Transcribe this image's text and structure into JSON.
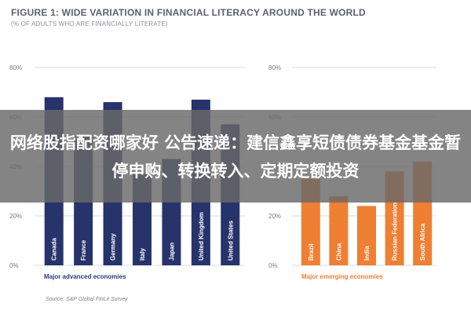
{
  "figure": {
    "title": "FIGURE 1: WIDE VARIATION IN FINANCIAL LITERACY AROUND THE WORLD",
    "subtitle": "(% OF ADULTS WHO ARE FINANCIALLY LITERATE)",
    "source": "Source: S&P Global FinLit Survey"
  },
  "overlay": {
    "text": "网络股指配资哪家好 公告速递：建信鑫享短债债券基金基金暂停申购、转换转入、定期定额投资"
  },
  "colors": {
    "advanced": "#27336b",
    "emerging": "#ef7f33",
    "grid": "#d9dbe0",
    "group_advanced": "#2a3a7a",
    "group_emerging": "#ef7f33"
  },
  "chart_data": [
    {
      "type": "bar",
      "group_label": "Major advanced economies",
      "categories": [
        "Canada",
        "France",
        "Germany",
        "Italy",
        "Japan",
        "United Kingdom",
        "United States"
      ],
      "values": [
        68,
        52,
        66,
        37,
        43,
        67,
        57
      ],
      "ylim": [
        0,
        80
      ],
      "yticks": [
        "0%",
        "20%",
        "40%",
        "60%",
        "80%"
      ],
      "grid": true
    },
    {
      "type": "bar",
      "group_label": "Major emerging economies",
      "categories": [
        "Brazil",
        "China",
        "India",
        "Russian Federation",
        "South Africa"
      ],
      "values": [
        35,
        28,
        24,
        38,
        42
      ],
      "ylim": [
        0,
        80
      ],
      "yticks": [
        "0%",
        "20%",
        "40%",
        "60%",
        "80%"
      ],
      "grid": true
    }
  ]
}
